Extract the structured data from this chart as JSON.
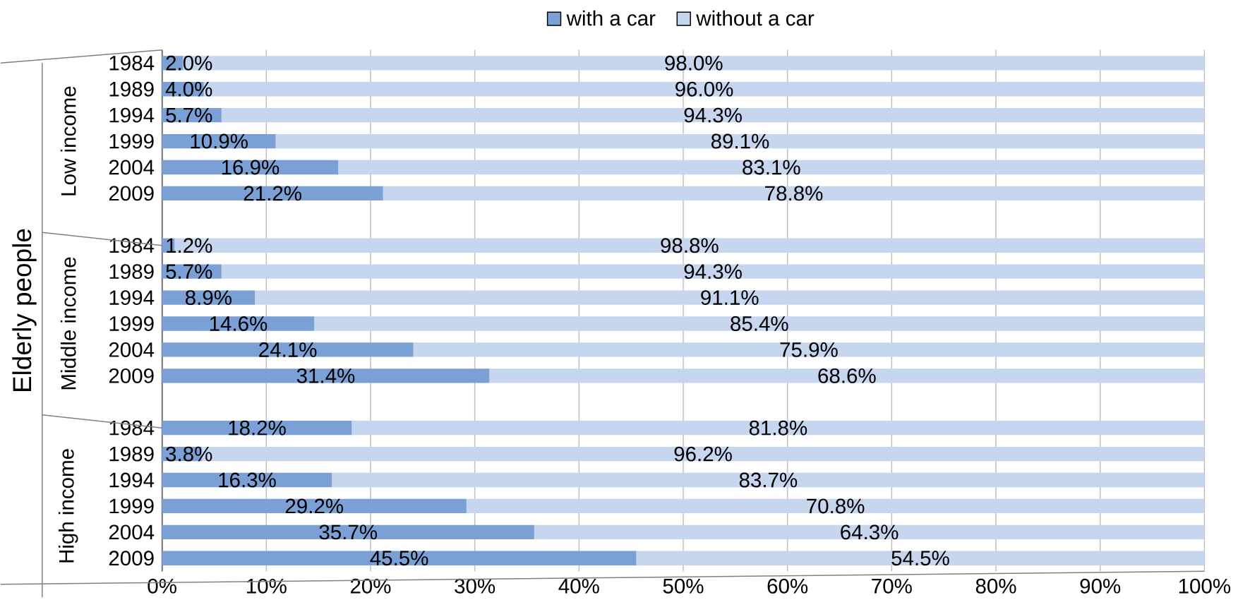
{
  "chart_data": {
    "type": "bar",
    "orientation": "horizontal",
    "stacked": true,
    "ylabel": "Elderly people",
    "categories": [
      "1984",
      "1989",
      "1994",
      "1999",
      "2004",
      "2009",
      null,
      "1984",
      "1989",
      "1994",
      "1999",
      "2004",
      "2009",
      null,
      "1984",
      "1989",
      "1994",
      "1999",
      "2004",
      "2009"
    ],
    "series": [
      {
        "name": "with a car",
        "color": "#7ba0d6",
        "values": [
          2.0,
          4.0,
          5.7,
          10.9,
          16.9,
          21.2,
          null,
          1.2,
          5.7,
          8.9,
          14.6,
          24.1,
          31.4,
          null,
          18.2,
          3.8,
          16.3,
          29.2,
          35.7,
          45.5
        ],
        "value_labels": [
          "2.0%",
          "4.0%",
          "5.7%",
          "10.9%",
          "16.9%",
          "21.2%",
          null,
          "1.2%",
          "5.7%",
          "8.9%",
          "14.6%",
          "24.1%",
          "31.4%",
          null,
          "18.2%",
          "3.8%",
          "16.3%",
          "29.2%",
          "35.7%",
          "45.5%"
        ]
      },
      {
        "name": "without a car",
        "color": "#c6d6ee",
        "values": [
          98.0,
          96.0,
          94.3,
          89.1,
          83.1,
          78.8,
          null,
          98.8,
          94.3,
          91.1,
          85.4,
          75.9,
          68.6,
          null,
          81.8,
          96.2,
          83.7,
          70.8,
          64.3,
          54.5
        ],
        "value_labels": [
          "98.0%",
          "96.0%",
          "94.3%",
          "89.1%",
          "83.1%",
          "78.8%",
          null,
          "98.8%",
          "94.3%",
          "91.1%",
          "85.4%",
          "75.9%",
          "68.6%",
          null,
          "81.8%",
          "96.2%",
          "83.7%",
          "70.8%",
          "64.3%",
          "54.5%"
        ]
      }
    ],
    "annotations": [
      "Low income",
      "Middle income",
      "High income"
    ],
    "xlim": [
      0,
      100
    ],
    "xticks": [
      {
        "value": 0,
        "label": "0%"
      },
      {
        "value": 10,
        "label": "10%"
      },
      {
        "value": 20,
        "label": "20%"
      },
      {
        "value": 30,
        "label": "30%"
      },
      {
        "value": 40,
        "label": "40%"
      },
      {
        "value": 50,
        "label": "50%"
      },
      {
        "value": 60,
        "label": "60%"
      },
      {
        "value": 70,
        "label": "70%"
      },
      {
        "value": 80,
        "label": "80%"
      },
      {
        "value": 90,
        "label": "90%"
      },
      {
        "value": 100,
        "label": "100%"
      }
    ],
    "grid": "x",
    "legend": "top"
  }
}
